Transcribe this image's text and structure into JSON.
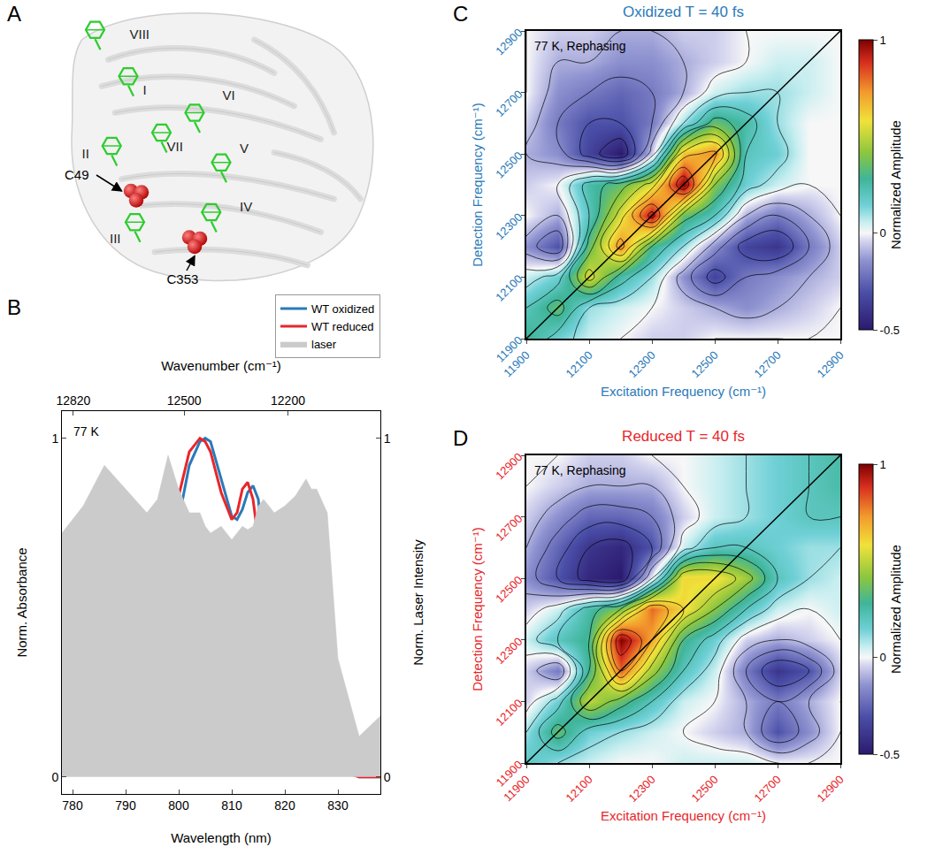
{
  "panel_a": {
    "panel_label": "A",
    "chromophore_labels": [
      "VIII",
      "I",
      "VI",
      "II",
      "VII",
      "V",
      "III",
      "IV"
    ],
    "residue_labels": [
      "C49",
      "C353"
    ]
  },
  "chart_data": [
    {
      "panel_label": "B",
      "type": "line",
      "annotation": "77 K",
      "x_label": "Wavelength (nm)",
      "x2_label": "Wavenumber (cm⁻¹)",
      "y_label": "Norm. Absorbance",
      "y2_label": "Norm. Laser Intensity",
      "x": [
        778,
        782,
        786,
        790,
        794,
        796,
        798,
        800,
        802,
        804,
        805,
        806,
        808,
        810,
        811,
        812,
        813,
        814,
        815,
        816,
        818,
        820,
        822,
        824,
        825,
        826,
        828,
        830,
        834,
        838
      ],
      "series": [
        {
          "name": "WT oxidized",
          "type": "line",
          "color": "#2a7ab9",
          "values": [
            0.1,
            0.13,
            0.18,
            0.25,
            0.33,
            0.4,
            0.55,
            0.76,
            0.92,
            0.99,
            1.0,
            0.99,
            0.88,
            0.77,
            0.76,
            0.79,
            0.84,
            0.86,
            0.82,
            0.65,
            0.33,
            0.16,
            0.18,
            0.28,
            0.29,
            0.25,
            0.11,
            0.03,
            0,
            0
          ]
        },
        {
          "name": "WT reduced",
          "type": "line",
          "color": "#e8262a",
          "values": [
            0.1,
            0.14,
            0.19,
            0.27,
            0.36,
            0.45,
            0.62,
            0.83,
            0.96,
            1.0,
            0.99,
            0.96,
            0.84,
            0.76,
            0.78,
            0.85,
            0.87,
            0.82,
            0.7,
            0.5,
            0.22,
            0.15,
            0.2,
            0.29,
            0.28,
            0.22,
            0.09,
            0.02,
            0,
            0
          ]
        },
        {
          "name": "laser",
          "type": "area",
          "color": "#cbcbcb",
          "axis": "y2",
          "values": [
            0.72,
            0.8,
            0.92,
            0.85,
            0.78,
            0.82,
            0.95,
            0.85,
            0.78,
            0.78,
            0.74,
            0.72,
            0.74,
            0.7,
            0.72,
            0.74,
            0.73,
            0.74,
            0.8,
            0.82,
            0.78,
            0.8,
            0.83,
            0.88,
            0.85,
            0.85,
            0.78,
            0.35,
            0.12,
            0.18
          ]
        }
      ],
      "xlim": [
        778,
        838
      ],
      "xticks": [
        780,
        790,
        800,
        810,
        820,
        830
      ],
      "x2lim": [
        12853,
        11933
      ],
      "x2ticks": [
        12820,
        12500,
        12200
      ],
      "ylim": [
        -0.05,
        1.08
      ],
      "yticks": [
        0,
        1
      ],
      "y2lim": [
        -0.05,
        1.08
      ],
      "y2ticks": [
        0,
        1
      ],
      "legend": "top"
    },
    {
      "panel_label": "C",
      "type": "contour",
      "title": "Oxidized T = 40 fs",
      "color": "#2a7ab9",
      "annotation": "77 K, Rephasing",
      "x_label": "Excitation Frequency (cm⁻¹)",
      "y_label": "Detection Frequency (cm⁻¹)",
      "x": [
        11900,
        12000,
        12100,
        12200,
        12300,
        12400,
        12500,
        12600,
        12700,
        12800,
        12900
      ],
      "y": [
        11900,
        12000,
        12100,
        12200,
        12300,
        12400,
        12500,
        12600,
        12700,
        12800,
        12900
      ],
      "z": [
        [
          0.3,
          0.15,
          0.05,
          0.0,
          -0.05,
          -0.05,
          0.0,
          0.0,
          0.0,
          0.0,
          0.0
        ],
        [
          0.2,
          0.35,
          0.1,
          0.05,
          0.0,
          -0.05,
          -0.1,
          -0.15,
          -0.1,
          -0.05,
          0.0
        ],
        [
          0.05,
          0.15,
          0.55,
          0.25,
          0.1,
          -0.15,
          -0.35,
          -0.2,
          -0.15,
          -0.1,
          -0.05
        ],
        [
          -0.15,
          -0.3,
          0.35,
          0.75,
          0.3,
          0.1,
          -0.15,
          -0.35,
          -0.4,
          -0.2,
          -0.05
        ],
        [
          0.0,
          -0.1,
          0.2,
          0.55,
          0.95,
          0.35,
          0.2,
          -0.1,
          -0.2,
          -0.1,
          0.0
        ],
        [
          -0.05,
          0.0,
          0.25,
          0.35,
          0.55,
          1.0,
          0.4,
          0.15,
          0.05,
          0.0,
          0.0
        ],
        [
          -0.1,
          -0.15,
          -0.35,
          -0.5,
          -0.05,
          0.65,
          0.75,
          0.2,
          0.15,
          0.0,
          0.0
        ],
        [
          -0.05,
          -0.2,
          -0.3,
          -0.3,
          -0.2,
          0.1,
          0.35,
          0.25,
          0.1,
          0.0,
          0.0
        ],
        [
          0.0,
          -0.15,
          -0.2,
          -0.25,
          -0.2,
          -0.1,
          0.05,
          0.1,
          0.1,
          0.05,
          0.0
        ],
        [
          0.0,
          -0.1,
          -0.1,
          -0.15,
          -0.15,
          -0.1,
          -0.05,
          0.0,
          0.05,
          0.05,
          0.0
        ],
        [
          0.0,
          -0.05,
          -0.05,
          -0.1,
          -0.1,
          -0.05,
          -0.05,
          0.0,
          0.0,
          0.0,
          0.0
        ]
      ],
      "xlim": [
        11900,
        12900
      ],
      "ylim": [
        11900,
        12900
      ],
      "xticks": [
        11900,
        12100,
        12300,
        12500,
        12700,
        12900
      ],
      "yticks": [
        11900,
        12100,
        12300,
        12500,
        12700,
        12900
      ],
      "colorbar": {
        "title": "Normalized Amplitude",
        "range": [
          -0.5,
          1
        ],
        "ticks": [
          -0.5,
          0,
          1
        ]
      }
    },
    {
      "panel_label": "D",
      "type": "contour",
      "title": "Reduced T = 40 fs",
      "color": "#e8262a",
      "annotation": "77 K, Rephasing",
      "x_label": "Excitation Frequency (cm⁻¹)",
      "y_label": "Detection Frequency (cm⁻¹)",
      "x": [
        11900,
        12000,
        12100,
        12200,
        12300,
        12400,
        12500,
        12600,
        12700,
        12800,
        12900
      ],
      "y": [
        11900,
        12000,
        12100,
        12200,
        12300,
        12400,
        12500,
        12600,
        12700,
        12800,
        12900
      ],
      "z": [
        [
          0.2,
          0.1,
          0.05,
          0.0,
          0.0,
          0.05,
          0.05,
          0.05,
          0.0,
          0.0,
          0.0
        ],
        [
          0.1,
          0.35,
          0.15,
          0.1,
          0.05,
          0.0,
          -0.05,
          -0.1,
          -0.3,
          -0.15,
          0.0
        ],
        [
          -0.05,
          0.15,
          0.5,
          0.35,
          0.2,
          0.05,
          0.0,
          -0.1,
          -0.2,
          -0.1,
          0.0
        ],
        [
          -0.05,
          -0.2,
          0.3,
          0.8,
          0.45,
          0.2,
          0.05,
          -0.2,
          -0.4,
          -0.3,
          -0.05
        ],
        [
          0.05,
          0.2,
          0.3,
          1.0,
          0.7,
          0.3,
          0.15,
          -0.05,
          -0.1,
          -0.05,
          0.0
        ],
        [
          -0.05,
          0.05,
          0.25,
          0.4,
          0.8,
          0.6,
          0.4,
          0.2,
          0.05,
          0.0,
          0.05
        ],
        [
          -0.15,
          -0.3,
          -0.45,
          -0.5,
          0.0,
          0.6,
          0.6,
          0.45,
          0.2,
          0.1,
          0.05
        ],
        [
          -0.1,
          -0.25,
          -0.4,
          -0.45,
          -0.3,
          0.05,
          0.2,
          0.2,
          0.15,
          0.1,
          0.1
        ],
        [
          -0.05,
          -0.15,
          -0.25,
          -0.25,
          -0.2,
          -0.05,
          0.05,
          0.1,
          0.15,
          0.2,
          0.2
        ],
        [
          0.0,
          -0.05,
          -0.1,
          -0.1,
          -0.1,
          0.0,
          0.05,
          0.1,
          0.15,
          0.2,
          0.25
        ],
        [
          0.0,
          0.0,
          -0.05,
          -0.05,
          0.0,
          0.0,
          0.05,
          0.1,
          0.15,
          0.2,
          0.25
        ]
      ],
      "xlim": [
        11900,
        12900
      ],
      "ylim": [
        11900,
        12900
      ],
      "xticks": [
        11900,
        12100,
        12300,
        12500,
        12700,
        12900
      ],
      "yticks": [
        11900,
        12100,
        12300,
        12500,
        12700,
        12900
      ],
      "colorbar": {
        "title": "Normalized Amplitude",
        "range": [
          -0.5,
          1
        ],
        "ticks": [
          -0.5,
          0,
          1
        ]
      }
    }
  ]
}
